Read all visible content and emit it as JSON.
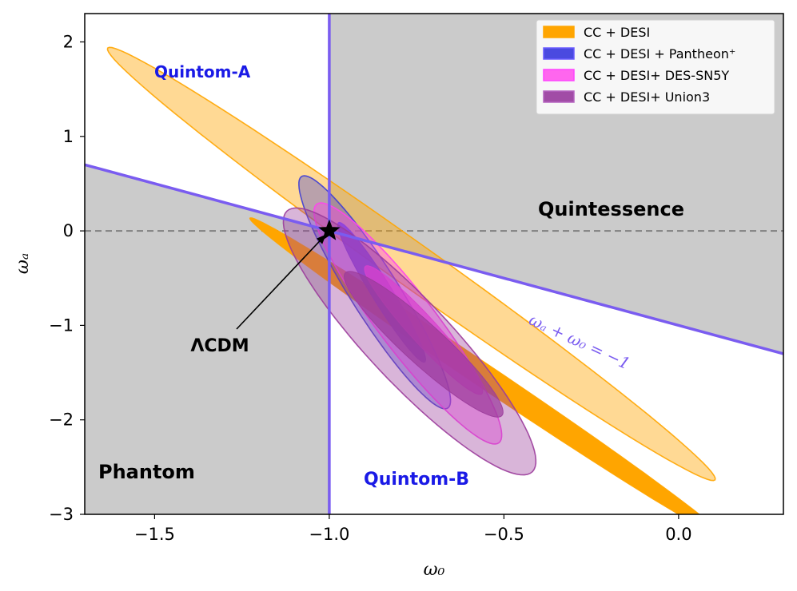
{
  "chart_data": {
    "type": "contour",
    "xlabel": "ω₀",
    "ylabel": "ωₐ",
    "xlim": [
      -1.7,
      0.3
    ],
    "ylim": [
      -3,
      2.3
    ],
    "xticks": [
      {
        "value": -1.5,
        "label": "−1.5"
      },
      {
        "value": -1.0,
        "label": "−1.0"
      },
      {
        "value": -0.5,
        "label": "−0.5"
      },
      {
        "value": 0.0,
        "label": "0.0"
      }
    ],
    "yticks": [
      {
        "value": 2,
        "label": "2"
      },
      {
        "value": 1,
        "label": "1"
      },
      {
        "value": 0,
        "label": "0"
      },
      {
        "value": -1,
        "label": "−1"
      },
      {
        "value": -2,
        "label": "−2"
      },
      {
        "value": -3,
        "label": "−3"
      }
    ],
    "series": [
      {
        "name": "CC + DESI",
        "color": "#ffa500",
        "contours": [
          {
            "level": "2sigma",
            "center": [
              -0.765,
              -0.35
            ],
            "semi_major": 2.45,
            "semi_minor": 0.1,
            "slope": -2.65
          },
          {
            "level": "1sigma",
            "center": [
              -0.55,
              -1.55
            ],
            "semi_major": 1.82,
            "semi_minor": 0.055,
            "slope": -2.5
          }
        ]
      },
      {
        "name": "CC + DESI + Pantheon⁺",
        "color": "#3d3dd6",
        "contours": [
          {
            "level": "2sigma",
            "center": [
              -0.87,
              -0.65
            ],
            "semi_major": 1.25,
            "semi_minor": 0.08,
            "slope": -6.1
          },
          {
            "level": "1sigma",
            "center": [
              -0.85,
              -0.65
            ],
            "semi_major": 0.75,
            "semi_minor": 0.034,
            "slope": -6.1
          }
        ]
      },
      {
        "name": "CC + DESI+ DES-SN5Y",
        "color": "#ff44ee",
        "contours": [
          {
            "level": "2sigma",
            "center": [
              -0.775,
              -0.98
            ],
            "semi_major": 1.3,
            "semi_minor": 0.1,
            "slope": -5.1
          },
          {
            "level": "1sigma",
            "center": [
              -0.73,
              -1.05
            ],
            "semi_major": 0.7,
            "semi_minor": 0.05,
            "slope": -4.2
          }
        ]
      },
      {
        "name": "CC + DESI+ Union3",
        "color": "#9b3c9b",
        "contours": [
          {
            "level": "2sigma",
            "center": [
              -0.77,
              -1.17
            ],
            "semi_major": 1.45,
            "semi_minor": 0.155,
            "slope": -4.3
          },
          {
            "level": "1sigma",
            "center": [
              -0.73,
              -1.2
            ],
            "semi_major": 0.8,
            "semi_minor": 0.08,
            "slope": -3.6
          }
        ]
      }
    ],
    "boundaries": [
      {
        "name": "ω₀ = −1",
        "type": "vertical",
        "x": -1.0,
        "color": "#7a5cf0"
      },
      {
        "name": "ωₐ + ω₀ = −1",
        "type": "line",
        "slope": -1,
        "intercept": -1,
        "color": "#7a5cf0"
      },
      {
        "name": "ωₐ = 0",
        "type": "horizontal",
        "y": 0,
        "color": "#808080",
        "style": "dashed"
      }
    ],
    "shaded_regions": [
      "Quintessence",
      "Phantom"
    ],
    "region_labels": [
      {
        "text": "Quintom-A",
        "color": "#1a1ae6"
      },
      {
        "text": "Quintessence",
        "color": "#000000"
      },
      {
        "text": "Phantom",
        "color": "#000000"
      },
      {
        "text": "Quintom-B",
        "color": "#1a1ae6"
      }
    ],
    "line_label": {
      "text": "ωₐ + ω₀ = −1",
      "color": "#7a5cf0"
    },
    "annotation": {
      "text": "ΛCDM",
      "point": [
        -1.0,
        0.0
      ],
      "marker": "star"
    },
    "legend": {
      "position": "top-right",
      "entries": [
        {
          "label": "CC + DESI",
          "face": "#ffa500",
          "edge": "#ffa500"
        },
        {
          "label": "CC + DESI + Pantheon⁺",
          "face": "#4a4ae0",
          "edge": "#6a5cff"
        },
        {
          "label": "CC + DESI+ DES-SN5Y",
          "face": "#ff66ee",
          "edge": "#ff44ff"
        },
        {
          "label": "CC + DESI+ Union3",
          "face": "#a14ca6",
          "edge": "#b565c0"
        }
      ]
    }
  }
}
